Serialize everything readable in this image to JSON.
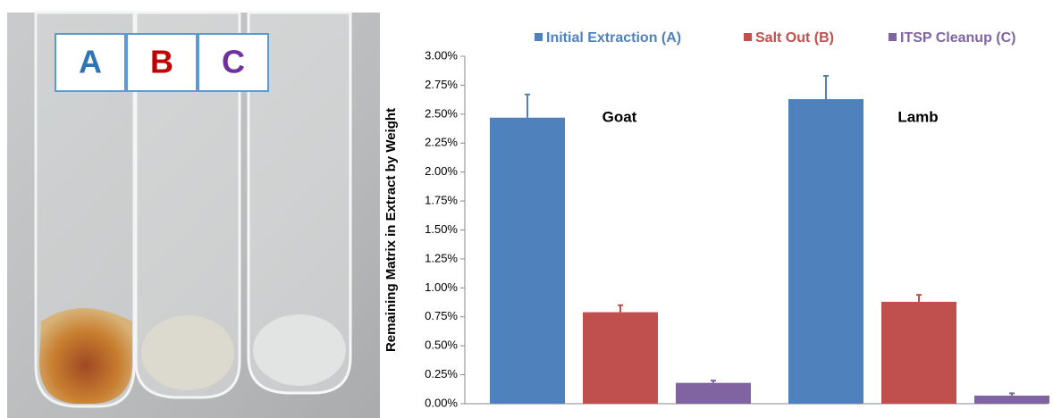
{
  "image": {
    "labels": [
      {
        "text": "A",
        "color": "#2e75b6"
      },
      {
        "text": "B",
        "color": "#c00000"
      },
      {
        "text": "C",
        "color": "#7030a0"
      }
    ]
  },
  "chart_data": {
    "type": "bar",
    "y_label": "Remaining Matrix in Extract by Weight",
    "categories": [
      "Goat",
      "Lamb"
    ],
    "series": [
      {
        "name": "Initial Extraction (A)",
        "color": "#4f81bd",
        "values": [
          2.47,
          2.63
        ],
        "errors": [
          0.2,
          0.2
        ]
      },
      {
        "name": "Salt Out (B)",
        "color": "#c0504d",
        "values": [
          0.79,
          0.88
        ],
        "errors": [
          0.06,
          0.06
        ]
      },
      {
        "name": "ITSP Cleanup (C)",
        "color": "#8064a2",
        "values": [
          0.18,
          0.07
        ],
        "errors": [
          0.02,
          0.02
        ]
      }
    ],
    "ylim": [
      0,
      3
    ],
    "yticks": [
      {
        "value": 0,
        "label": "0.00%"
      },
      {
        "value": 0.25,
        "label": "0.25%"
      },
      {
        "value": 0.5,
        "label": "0.50%"
      },
      {
        "value": 0.75,
        "label": "0.75%"
      },
      {
        "value": 1,
        "label": "1.00%"
      },
      {
        "value": 1.25,
        "label": "1.25%"
      },
      {
        "value": 1.5,
        "label": "1.50%"
      },
      {
        "value": 1.75,
        "label": "1.75%"
      },
      {
        "value": 2,
        "label": "2.00%"
      },
      {
        "value": 2.25,
        "label": "2.25%"
      },
      {
        "value": 2.5,
        "label": "2.50%"
      },
      {
        "value": 2.75,
        "label": "2.75%"
      },
      {
        "value": 3,
        "label": "3.00%"
      }
    ],
    "grid": false,
    "legend": "top"
  }
}
